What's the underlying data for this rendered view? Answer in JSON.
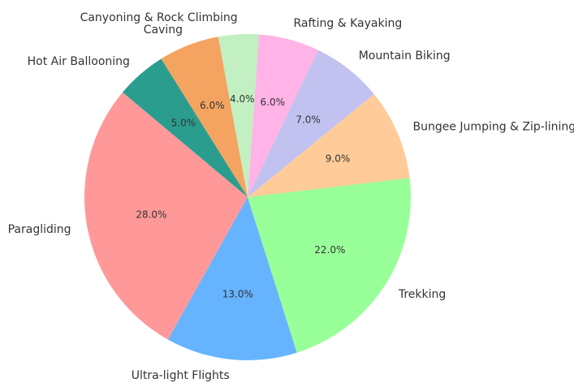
{
  "chart_data": {
    "type": "pie",
    "categories": [
      "Paragliding",
      "Ultra-light Flights",
      "Trekking",
      "Bungee Jumping & Zip-lining",
      "Mountain Biking",
      "Rafting & Kayaking",
      "Canyoning & Rock Climbing",
      "Caving",
      "Hot Air Ballooning"
    ],
    "values": [
      28,
      13,
      22,
      9,
      7,
      6,
      4,
      6,
      5
    ],
    "value_labels": [
      "28.0%",
      "13.0%",
      "22.0%",
      "9.0%",
      "7.0%",
      "6.0%",
      "4.0%",
      "6.0%",
      "5.0%"
    ],
    "colors": [
      "#ff9999",
      "#66b3ff",
      "#99ff99",
      "#ffcc99",
      "#c2c2f0",
      "#ffb3e6",
      "#c2f0c2",
      "#f4a460",
      "#2a9d8f"
    ]
  }
}
